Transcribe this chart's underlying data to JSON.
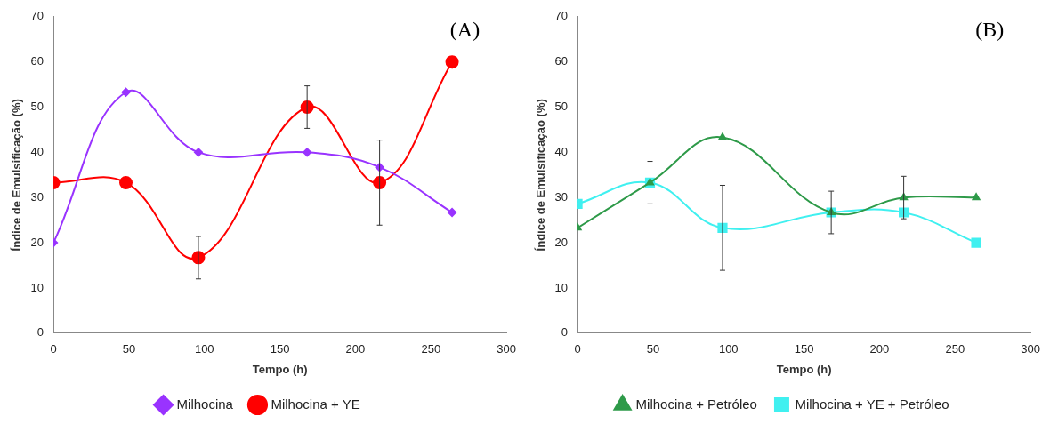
{
  "chart_data": [
    {
      "type": "line",
      "xlabel": "Tempo (h)",
      "ylabel": "Índice de Emulsificação (%)",
      "annotations": [
        "(A)"
      ],
      "xlim": [
        0,
        300
      ],
      "xticks": [
        0,
        50,
        100,
        150,
        200,
        250,
        300
      ],
      "ylim": [
        0,
        70
      ],
      "yticks": [
        0,
        10,
        20,
        30,
        40,
        50,
        60,
        70
      ],
      "grid": false,
      "legend": "bottom",
      "x": [
        0,
        48,
        96,
        168,
        216,
        264
      ],
      "series": [
        {
          "name": "Milhocina",
          "color": "#9933ff",
          "marker": "diamond",
          "values": [
            20,
            53.3,
            40,
            40,
            36.7,
            26.7
          ]
        },
        {
          "name": "Milhocina + YE",
          "color": "#ff0000",
          "marker": "circle",
          "values": [
            33.3,
            33.3,
            16.7,
            50,
            33.3,
            60
          ],
          "errors": [
            null,
            null,
            4.7,
            4.7,
            9.4,
            null
          ]
        }
      ]
    },
    {
      "type": "line",
      "xlabel": "Tempo (h)",
      "ylabel": "Índice de Emulsificação (%)",
      "annotations": [
        "(B)"
      ],
      "xlim": [
        0,
        300
      ],
      "xticks": [
        0,
        50,
        100,
        150,
        200,
        250,
        300
      ],
      "ylim": [
        0,
        70
      ],
      "yticks": [
        0,
        10,
        20,
        30,
        40,
        50,
        60,
        70
      ],
      "grid": false,
      "legend": "bottom",
      "x": [
        0,
        48,
        96,
        168,
        216,
        264
      ],
      "series": [
        {
          "name": "Milhocina + Petróleo",
          "color": "#2e9a49",
          "marker": "triangle",
          "values": [
            23.3,
            33.3,
            43.3,
            26.7,
            30,
            30
          ],
          "errors": [
            null,
            null,
            null,
            null,
            4.7,
            null
          ]
        },
        {
          "name": "Milhocina + YE + Petróleo",
          "color": "#40f0f0",
          "marker": "square",
          "values": [
            28.6,
            33.3,
            23.3,
            26.7,
            26.7,
            20
          ],
          "errors": [
            null,
            4.7,
            9.4,
            4.7,
            null,
            null
          ]
        }
      ]
    }
  ]
}
